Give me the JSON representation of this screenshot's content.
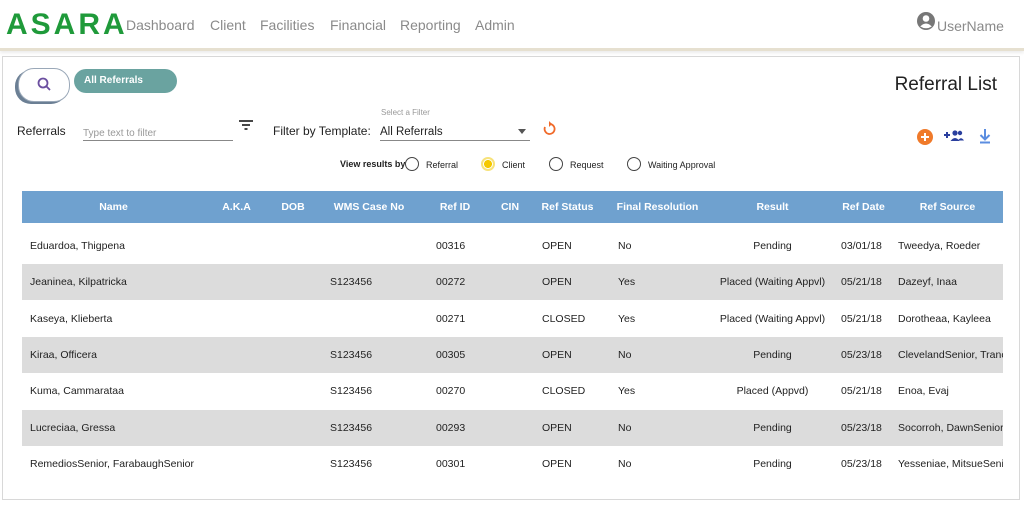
{
  "nav": {
    "logo": "ASARA",
    "items": [
      "Dashboard",
      "Client",
      "Facilities",
      "Financial",
      "Reporting",
      "Admin"
    ],
    "user": "UserName"
  },
  "toolbar": {
    "tab": "All Referrals",
    "title": "Referral List"
  },
  "filters": {
    "referrals_label": "Referrals",
    "referrals_placeholder": "Type text to filter",
    "template_label": "Filter by Template:",
    "select_hint": "Select a Filter",
    "select_value": "All Referrals"
  },
  "view_by": {
    "label": "View results by",
    "options": [
      "Referral",
      "Client",
      "Request",
      "Waiting Approval"
    ],
    "selected": 1
  },
  "table": {
    "columns": [
      "Name",
      "A.K.A",
      "DOB",
      "WMS Case No",
      "Ref ID",
      "CIN",
      "Ref Status",
      "Final Resolution",
      "Result",
      "Ref Date",
      "Ref Source"
    ],
    "rows": [
      [
        "Eduardoa, Thigpena",
        null,
        null,
        null,
        "00316",
        null,
        "OPEN",
        "No",
        "Pending",
        "03/01/18",
        "Tweedya, Roeder"
      ],
      [
        "Jeaninea, Kilpatricka",
        null,
        null,
        "S123456",
        "00272",
        null,
        "OPEN",
        "Yes",
        "Placed (Waiting Appvl)",
        "05/21/18",
        "Dazeyf, Inaa"
      ],
      [
        "Kaseya, Klieberta",
        null,
        null,
        null,
        "00271",
        null,
        "CLOSED",
        "Yes",
        "Placed (Waiting Appvl)",
        "05/21/18",
        "Dorotheaa, Kayleea"
      ],
      [
        "Kiraa, Officera",
        null,
        null,
        "S123456",
        "00305",
        null,
        "OPEN",
        "No",
        "Pending",
        "05/23/18",
        "ClevelandSenior, Tranc"
      ],
      [
        "Kuma, Cammarataa",
        null,
        null,
        "S123456",
        "00270",
        null,
        "CLOSED",
        "Yes",
        "Placed (Appvd)",
        "05/21/18",
        "Enoa, Evaj"
      ],
      [
        "Lucreciaa, Gressa",
        null,
        null,
        "S123456",
        "00293",
        null,
        "OPEN",
        "No",
        "Pending",
        "05/23/18",
        "Socorroh, DawnSenior"
      ],
      [
        "RemediosSenior, FarabaughSenior",
        null,
        null,
        "S123456",
        "00301",
        null,
        "OPEN",
        "No",
        "Pending",
        "05/23/18",
        "Yesseniae, MitsueSeni…"
      ]
    ]
  }
}
